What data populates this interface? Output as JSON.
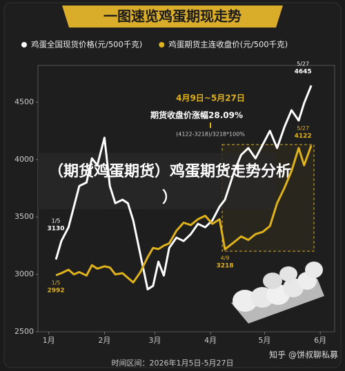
{
  "chart_data": {
    "type": "line",
    "title": "一图速览鸡蛋期现走势",
    "x": [
      5,
      8,
      12,
      15,
      18,
      22,
      25,
      28,
      32,
      35,
      38,
      42,
      45,
      48,
      52,
      56,
      59,
      62,
      65,
      68,
      72,
      76,
      80,
      84,
      88,
      92,
      96,
      99,
      104,
      108,
      112,
      116,
      120,
      124,
      128,
      132,
      136,
      140,
      143,
      147
    ],
    "series": [
      {
        "name": "鸡蛋全国现货价格(元/500千克)",
        "color": "#ffffff",
        "values": [
          3130,
          3290,
          3410,
          3590,
          3770,
          3800,
          4010,
          3950,
          4190,
          3770,
          3620,
          3650,
          3620,
          3470,
          3170,
          2870,
          2900,
          3110,
          2990,
          3230,
          3320,
          3290,
          3350,
          3440,
          3410,
          3470,
          3590,
          3650,
          3890,
          4040,
          4100,
          4010,
          4130,
          4250,
          4100,
          4280,
          4430,
          4340,
          4490,
          4645
        ]
      },
      {
        "name": "鸡蛋期货主连收盘价(元/500千克)",
        "color": "#e0b21c",
        "values": [
          2992,
          3010,
          3040,
          3000,
          3020,
          2990,
          3080,
          3050,
          3070,
          3060,
          3000,
          3010,
          2970,
          2930,
          3020,
          3150,
          3230,
          3220,
          3250,
          3270,
          3380,
          3450,
          3430,
          3480,
          3510,
          3440,
          3480,
          3218,
          3280,
          3330,
          3300,
          3350,
          3370,
          3420,
          3620,
          3750,
          3900,
          4100,
          3950,
          4122
        ]
      }
    ],
    "xlim": [
      -5,
      160
    ],
    "xticks": [
      {
        "value": 1,
        "label": "1月"
      },
      {
        "value": 32,
        "label": "2月"
      },
      {
        "value": 60,
        "label": "3月"
      },
      {
        "value": 91,
        "label": "4月"
      },
      {
        "value": 121,
        "label": "5月"
      },
      {
        "value": 152,
        "label": "6月"
      }
    ],
    "ylim": [
      2500,
      4820
    ],
    "yticks": [
      2500,
      3000,
      3500,
      4000,
      4500
    ],
    "grid": false,
    "date_labels": {
      "start": "1/5",
      "mid": "4/9",
      "end": "5/27"
    },
    "callout": {
      "period": "4月9日~5月27日",
      "headline": "期货收盘价涨幅28.09%",
      "formula": "(4122-3218)/3218*100%"
    },
    "overlay": {
      "line1": "（期货鸡蛋期货）鸡蛋期货走势分析",
      "line2": "）"
    },
    "footer": "时间区间：2026年1月5日-5月27日",
    "watermark": "知乎 @饼叔聊私募"
  }
}
